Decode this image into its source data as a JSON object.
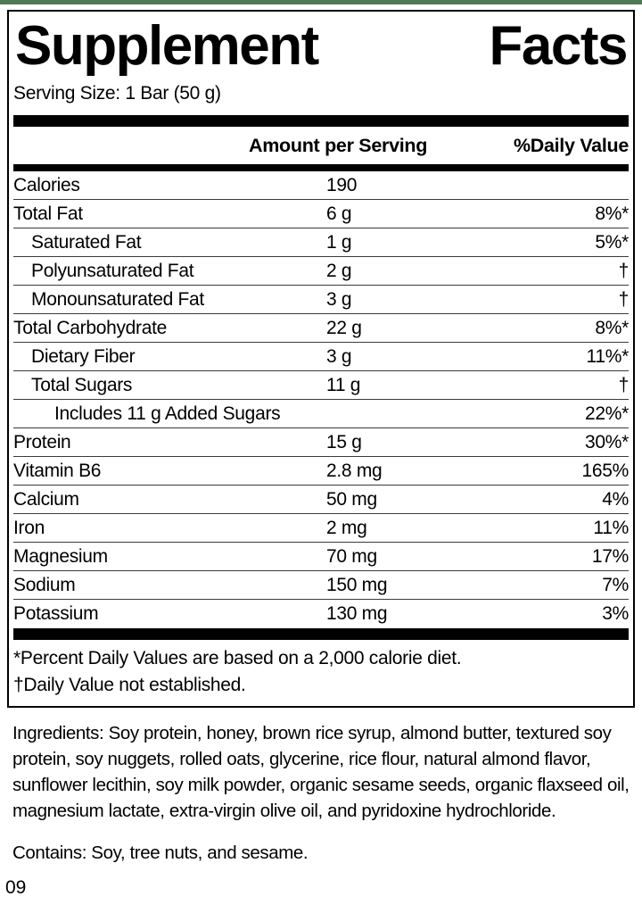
{
  "page": {
    "top_strip_color": "#4e7a57",
    "footer_code": "09"
  },
  "label": {
    "title": {
      "word1": "Supplement",
      "word2": "Facts"
    },
    "serving_size": "Serving Size: 1 Bar (50 g)",
    "columns": {
      "amount": "Amount per Serving",
      "dv": "%Daily Value"
    },
    "rows": [
      {
        "label": "Calories",
        "indent": 0,
        "amount": "190",
        "dv": ""
      },
      {
        "label": "Total Fat",
        "indent": 0,
        "amount": "6 g",
        "dv": "8%*"
      },
      {
        "label": "Saturated Fat",
        "indent": 1,
        "amount": "1 g",
        "dv": "5%*"
      },
      {
        "label": "Polyunsaturated Fat",
        "indent": 1,
        "amount": "2 g",
        "dv": "†"
      },
      {
        "label": "Monounsaturated Fat",
        "indent": 1,
        "amount": "3 g",
        "dv": "†"
      },
      {
        "label": "Total Carbohydrate",
        "indent": 0,
        "amount": "22 g",
        "dv": "8%*"
      },
      {
        "label": "Dietary Fiber",
        "indent": 1,
        "amount": "3 g",
        "dv": "11%*"
      },
      {
        "label": "Total Sugars",
        "indent": 1,
        "amount": "11 g",
        "dv": "†"
      },
      {
        "label": "Includes 11 g Added Sugars",
        "indent": 2,
        "amount": "",
        "dv": "22%*"
      },
      {
        "label": "Protein",
        "indent": 0,
        "amount": "15 g",
        "dv": "30%*"
      },
      {
        "label": "Vitamin B6",
        "indent": 0,
        "amount": "2.8 mg",
        "dv": "165%"
      },
      {
        "label": "Calcium",
        "indent": 0,
        "amount": "50 mg",
        "dv": "4%"
      },
      {
        "label": "Iron",
        "indent": 0,
        "amount": "2 mg",
        "dv": "11%"
      },
      {
        "label": "Magnesium",
        "indent": 0,
        "amount": "70 mg",
        "dv": "17%"
      },
      {
        "label": "Sodium",
        "indent": 0,
        "amount": "150 mg",
        "dv": "7%"
      },
      {
        "label": "Potassium",
        "indent": 0,
        "amount": "130 mg",
        "dv": "3%"
      }
    ],
    "footnotes": [
      "*Percent Daily Values are based on a 2,000 calorie diet.",
      "†Daily Value not established."
    ]
  },
  "ingredients": "Ingredients: Soy protein, honey, brown rice syrup, almond butter, textured soy protein, soy nuggets, rolled oats, glycerine, rice flour, natural almond flavor, sunflower lecithin, soy milk powder, organic sesame seeds, organic flaxseed oil, magnesium lactate, extra-virgin olive oil, and pyridoxine hydrochloride.",
  "contains": "Contains: Soy, tree nuts, and sesame."
}
